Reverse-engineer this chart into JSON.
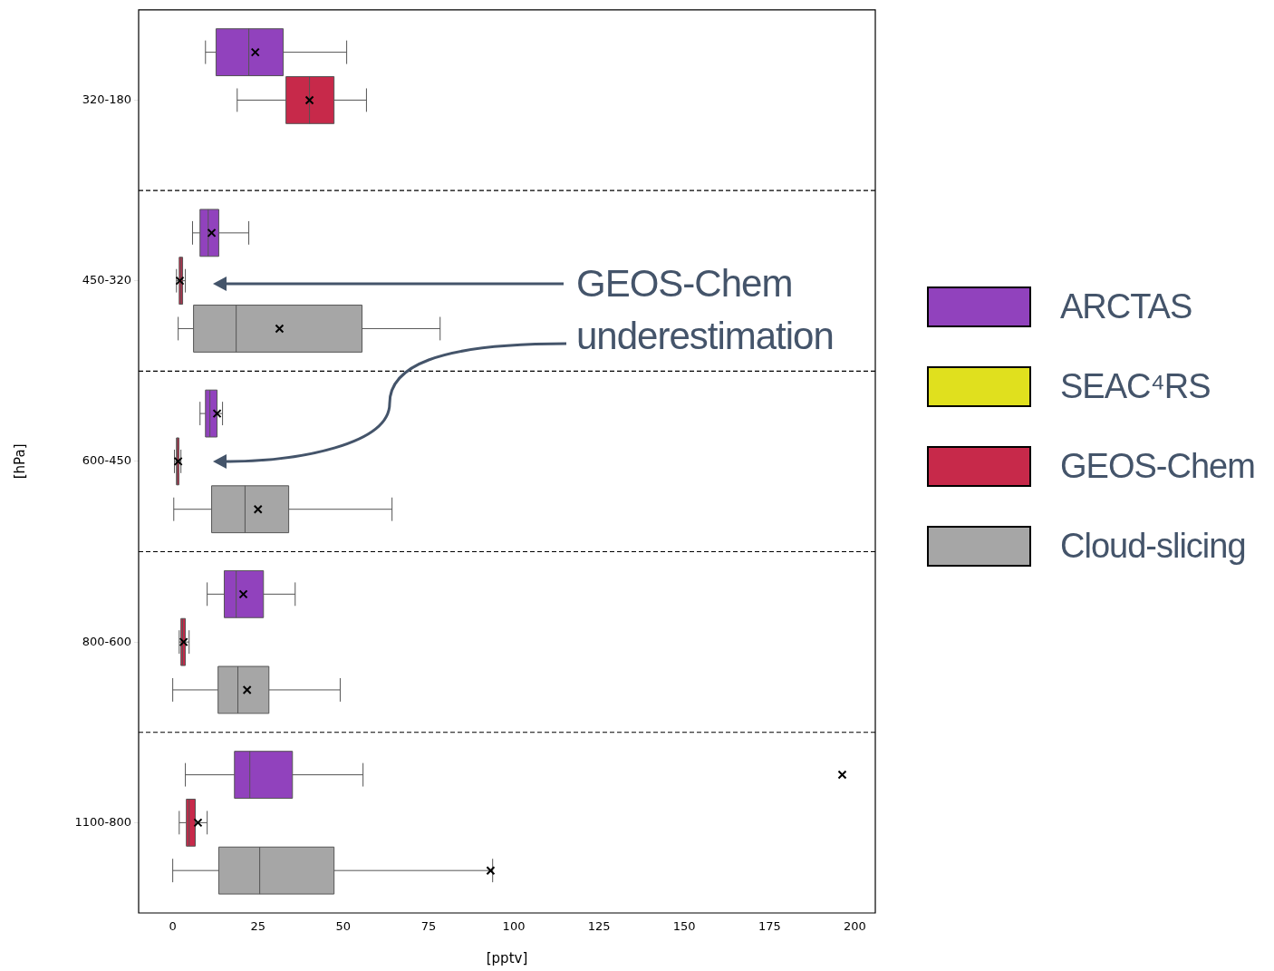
{
  "chart_data": {
    "type": "box",
    "orientation": "horizontal",
    "xlabel": "[pptv]",
    "ylabel": "[hPa]",
    "categories": [
      "320-180",
      "450-320",
      "600-450",
      "800-600",
      "1100-800"
    ],
    "xlim": [
      -10,
      206
    ],
    "xticks": [
      0,
      25,
      50,
      75,
      100,
      125,
      150,
      175,
      200
    ],
    "legend": "right",
    "series": [
      {
        "name": "ARCTAS",
        "color": "#9142bd",
        "boxes": [
          {
            "low": 9.6,
            "q1": 12.7,
            "median": 22.3,
            "q3": 32.4,
            "high": 51,
            "mean": 24.2
          },
          {
            "low": 5.8,
            "q1": 8,
            "median": 10.4,
            "q3": 13.5,
            "high": 22.3,
            "mean": 11.4
          },
          {
            "low": 8,
            "q1": 9.6,
            "median": 10.9,
            "q3": 13,
            "high": 14.6,
            "mean": 13
          },
          {
            "low": 10.1,
            "q1": 15.1,
            "median": 18.6,
            "q3": 26.6,
            "high": 35.9,
            "mean": 20.7
          },
          {
            "low": 3.7,
            "q1": 18.1,
            "median": 22.6,
            "q3": 35.1,
            "high": 55.8,
            "mean": 196.3
          }
        ]
      },
      {
        "name": "SEAC⁴RS",
        "color": "#e0e01e",
        "boxes": [
          null,
          null,
          null,
          null,
          null
        ]
      },
      {
        "name": "GEOS-Chem",
        "color": "#c7294a",
        "boxes": [
          {
            "low": 18.9,
            "q1": 33.2,
            "median": 40.1,
            "q3": 47.3,
            "high": 56.8,
            "mean": 40.1
          },
          {
            "low": 1.1,
            "q1": 1.9,
            "median": 2.4,
            "q3": 2.9,
            "high": 3.7,
            "mean": 2.1
          },
          {
            "low": 0.5,
            "q1": 1.1,
            "median": 1.3,
            "q3": 1.8,
            "high": 2.4,
            "mean": 1.6
          },
          {
            "low": 1.9,
            "q1": 2.4,
            "median": 2.9,
            "q3": 3.7,
            "high": 4.8,
            "mean": 3.2
          },
          {
            "low": 1.9,
            "q1": 4,
            "median": 4.8,
            "q3": 6.6,
            "high": 10.1,
            "mean": 7.4
          }
        ]
      },
      {
        "name": "Cloud-slicing",
        "color": "#a6a6a6",
        "boxes": [
          null,
          {
            "low": 1.6,
            "q1": 6.1,
            "median": 18.6,
            "q3": 55.5,
            "high": 78.4,
            "mean": 31.3
          },
          {
            "low": 0.3,
            "q1": 11.4,
            "median": 21.2,
            "q3": 34,
            "high": 64.3,
            "mean": 25
          },
          {
            "low": 0,
            "q1": 13.3,
            "median": 19.1,
            "q3": 28.2,
            "high": 49.1,
            "mean": 21.8
          },
          {
            "low": 0,
            "q1": 13.5,
            "median": 25.5,
            "q3": 47.3,
            "high": 93.8,
            "mean": 93.2
          }
        ]
      }
    ],
    "annotations": [
      "GEOS-Chem underestimation"
    ]
  }
}
